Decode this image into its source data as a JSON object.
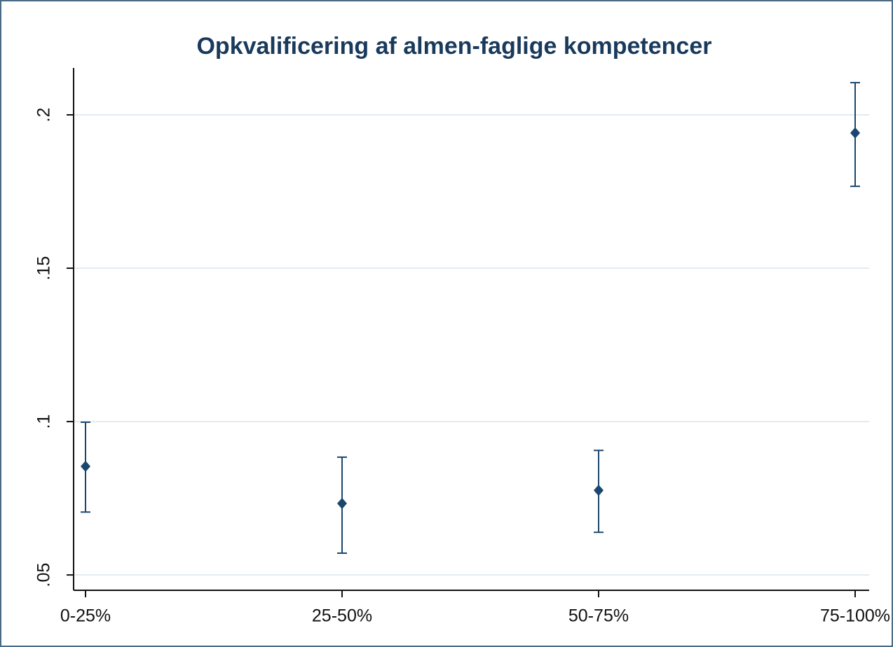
{
  "chart_data": {
    "type": "errorbar",
    "title": "Opkvalificering af almen-faglige kompetencer",
    "categories": [
      "0-25%",
      "25-50%",
      "50-75%",
      "75-100%"
    ],
    "values": [
      0.0854,
      0.0733,
      0.0776,
      0.1941
    ],
    "ci_low": [
      0.0705,
      0.0571,
      0.0639,
      0.1767
    ],
    "ci_high": [
      0.0998,
      0.0884,
      0.0906,
      0.2105
    ],
    "color": "#1a476f",
    "ylim": [
      0.045,
      0.2153
    ],
    "yticks": [
      {
        "value": 0.05,
        "label": ".05"
      },
      {
        "value": 0.1,
        "label": ".1"
      },
      {
        "value": 0.15,
        "label": ".15"
      },
      {
        "value": 0.2,
        "label": ".2"
      }
    ],
    "grid": true
  }
}
